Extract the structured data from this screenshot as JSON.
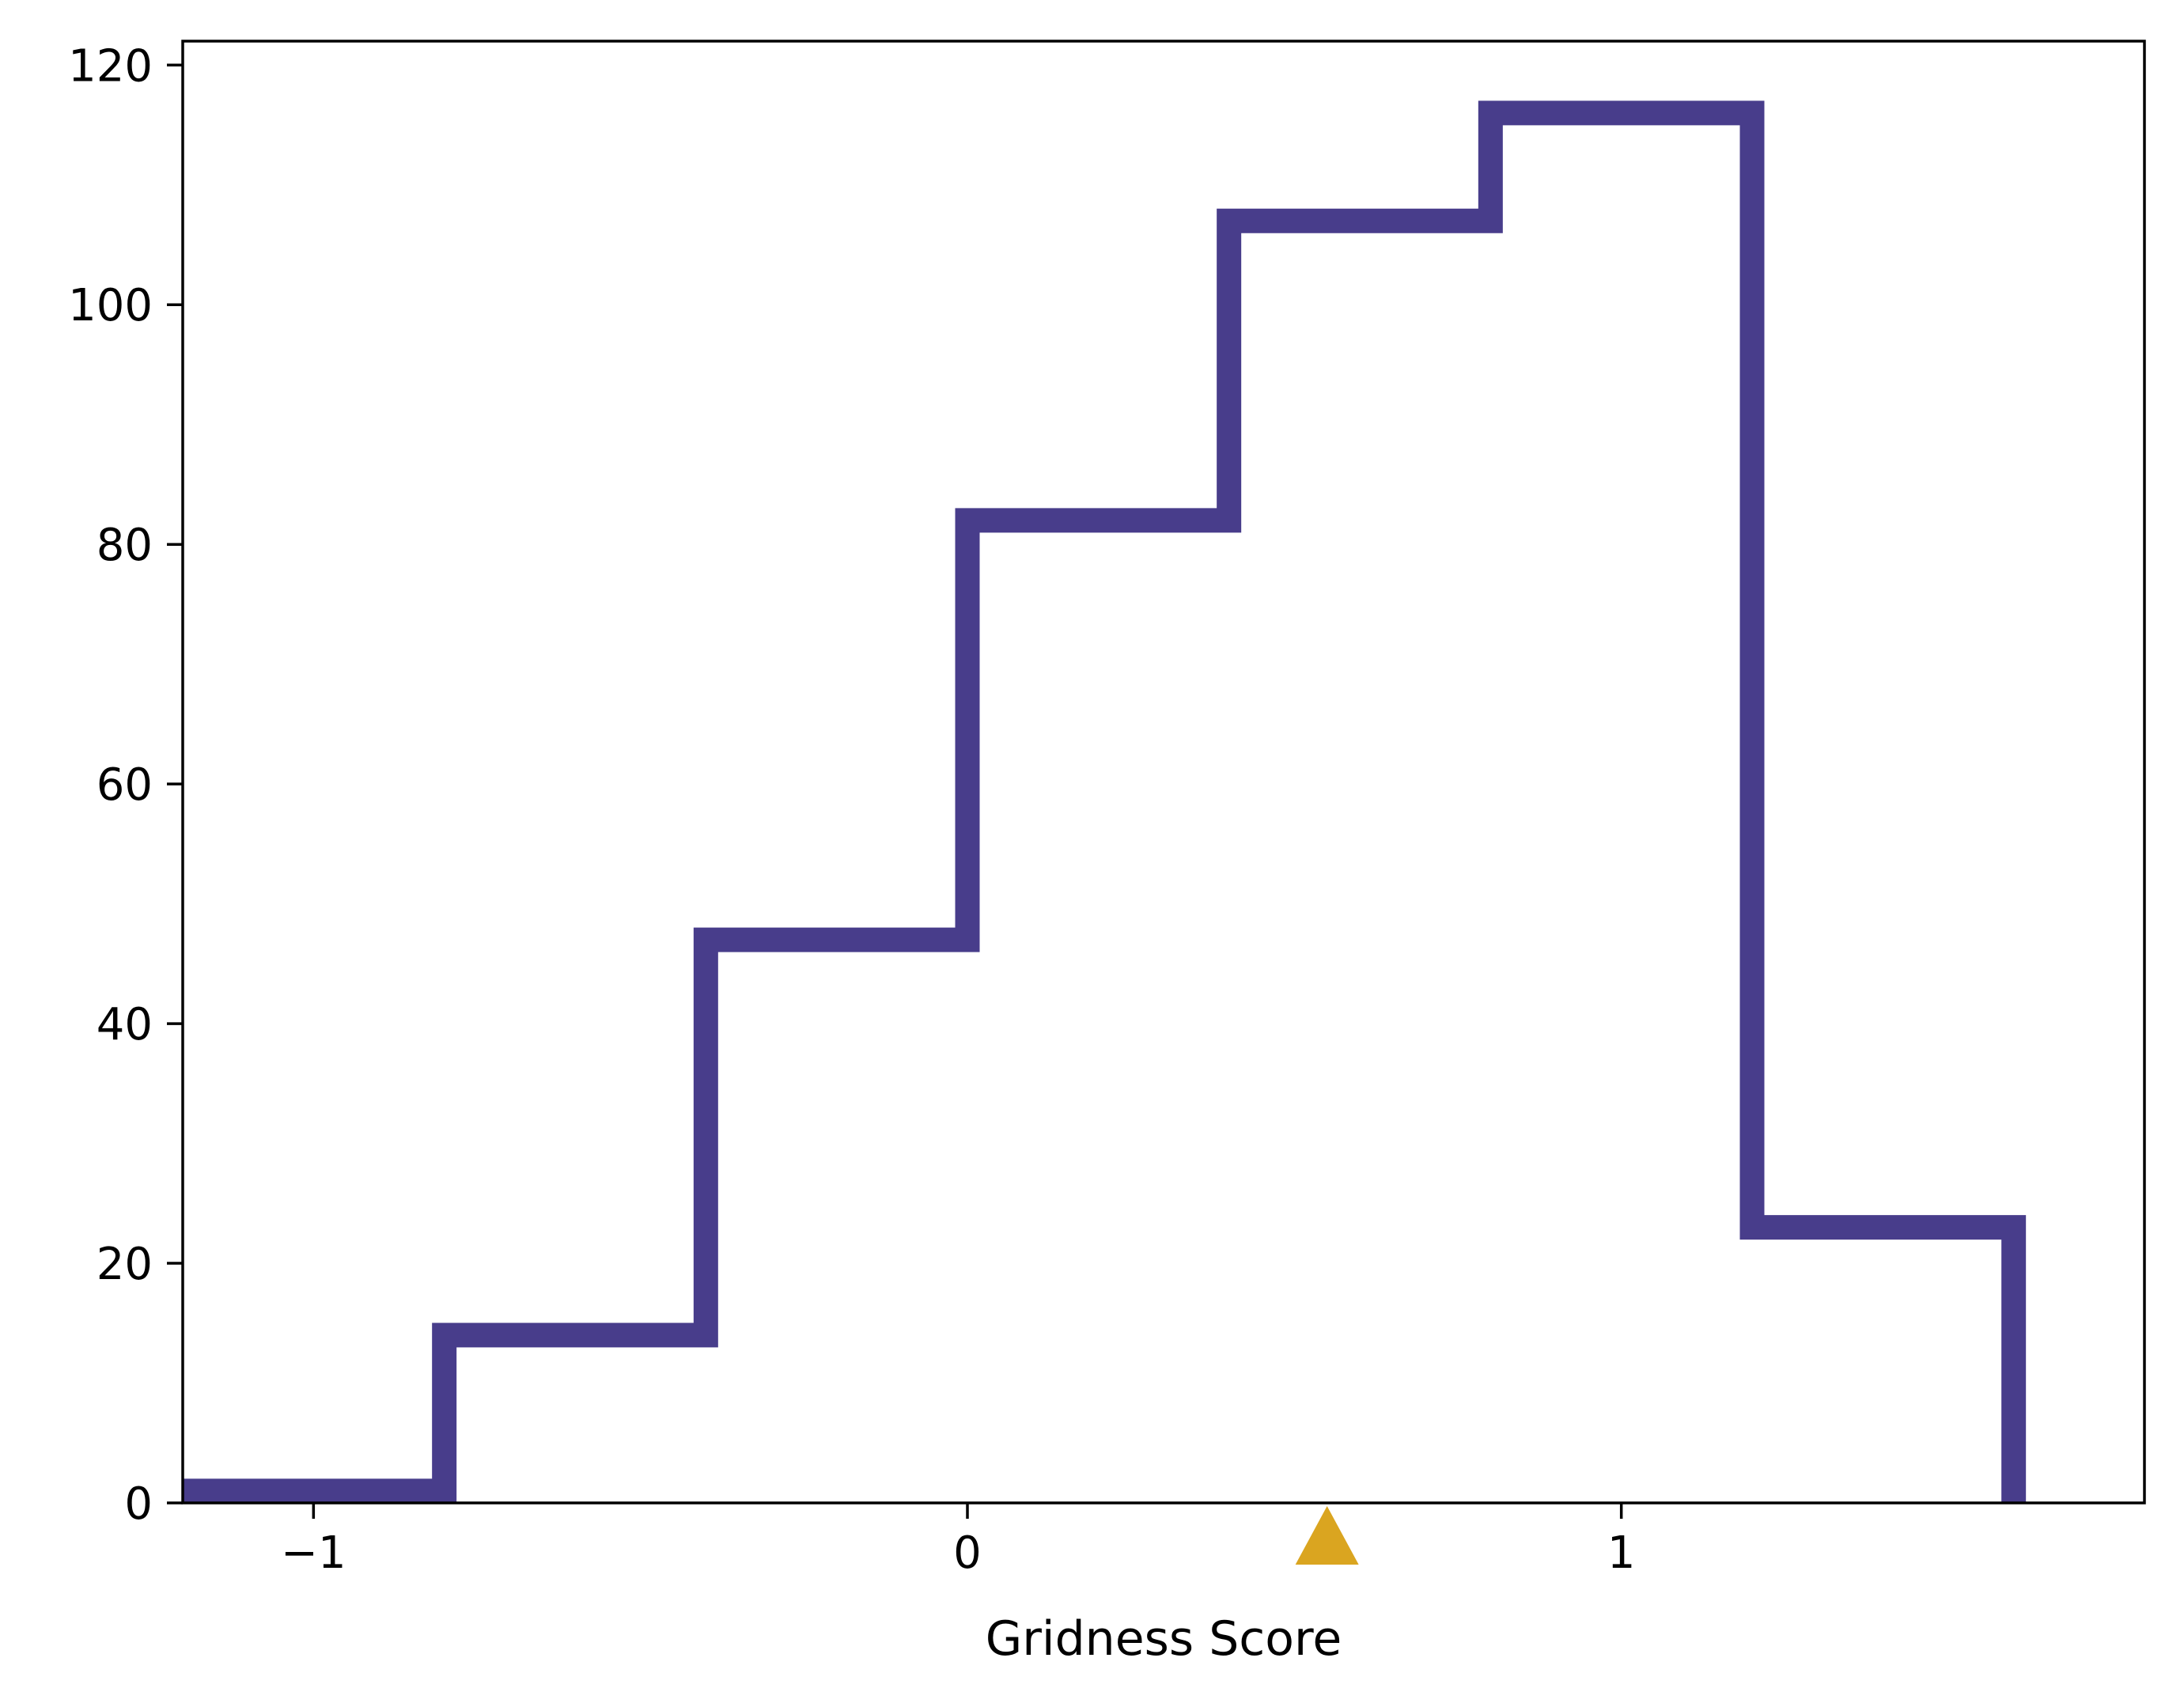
{
  "chart_data": {
    "type": "histogram",
    "title": "",
    "xlabel": "Gridness Score",
    "ylabel": "",
    "xlim": [
      -1.2,
      1.8
    ],
    "ylim": [
      0,
      122
    ],
    "xticks": [
      {
        "value": -1,
        "label": "−1"
      },
      {
        "value": 0,
        "label": "0"
      },
      {
        "value": 1,
        "label": "1"
      }
    ],
    "yticks": [
      {
        "value": 0,
        "label": "0"
      },
      {
        "value": 20,
        "label": "20"
      },
      {
        "value": 40,
        "label": "40"
      },
      {
        "value": 60,
        "label": "60"
      },
      {
        "value": 80,
        "label": "80"
      },
      {
        "value": 100,
        "label": "100"
      },
      {
        "value": 120,
        "label": "120"
      }
    ],
    "bin_edges": [
      -1.2,
      -0.8,
      -0.4,
      0.0,
      0.4,
      0.8,
      1.2,
      1.6
    ],
    "counts": [
      1,
      14,
      47,
      82,
      107,
      116,
      23
    ],
    "histtype": "step",
    "line_color": "#483D8B",
    "grid": false,
    "marker": {
      "x": 0.55,
      "shape": "triangle-up",
      "color": "#DAA520"
    }
  }
}
